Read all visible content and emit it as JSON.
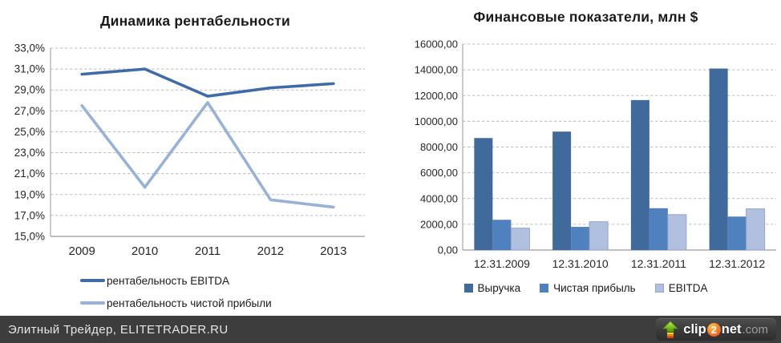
{
  "colors": {
    "grid": "#bfbfbf",
    "axis": "#9a9a9a",
    "tick_text": "#262626",
    "footer_bg": "#3d3d3d",
    "line_ebitda": "#3f6ba8",
    "line_net_margin": "#98b1d7",
    "bar_revenue": "#40699c",
    "bar_net_profit": "#4e81bd",
    "bar_ebitda": "#b1c0de",
    "bar_ebitda_border": "#95a5cc",
    "logo_orange": "#f15a24",
    "logo_green": "#6cb21c"
  },
  "chart_data": [
    {
      "type": "line",
      "title": "Динамика рентабельности",
      "categories": [
        "2009",
        "2010",
        "2011",
        "2012",
        "2013"
      ],
      "series": [
        {
          "name": "рентабельность EBITDA",
          "color": "#3f6ba8",
          "values": [
            30.5,
            31.0,
            28.4,
            29.2,
            29.6
          ]
        },
        {
          "name": "рентабельность чистой прибыли",
          "color": "#98b1d7",
          "values": [
            27.5,
            19.7,
            27.8,
            18.5,
            17.8
          ]
        }
      ],
      "ylim": [
        15,
        33
      ],
      "ytick_step": 2,
      "ytick_labels": [
        "33,0%",
        "31,0%",
        "29,0%",
        "27,0%",
        "25,0%",
        "23,0%",
        "21,0%",
        "19,0%",
        "17,0%",
        "15,0%"
      ],
      "unit": "%",
      "grid": true,
      "legend_position": "bottom-left"
    },
    {
      "type": "bar",
      "title": "Финансовые показатели, млн $",
      "categories": [
        "12.31.2009",
        "12.31.2010",
        "12.31.2011",
        "12.31.2012"
      ],
      "series": [
        {
          "name": "Выручка",
          "color": "#40699c",
          "values": [
            8700,
            9200,
            11650,
            14100
          ]
        },
        {
          "name": "Чистая прибыль",
          "color": "#4e81bd",
          "values": [
            2350,
            1800,
            3250,
            2600
          ]
        },
        {
          "name": "EBITDA",
          "color": "#b1c0de",
          "border": "#95a5cc",
          "values": [
            1700,
            2200,
            2750,
            3200
          ]
        }
      ],
      "ylim": [
        0,
        16000
      ],
      "ytick_step": 2000,
      "ytick_labels": [
        "16000,00",
        "14000,00",
        "12000,00",
        "10000,00",
        "8000,00",
        "6000,00",
        "4000,00",
        "2000,00",
        "0,00"
      ],
      "grid": true,
      "legend_position": "bottom-center"
    }
  ],
  "footer": {
    "credit": "Элитный Трейдер, ELITETRADER.RU",
    "logo": {
      "clip": "clip",
      "two": "2",
      "net": "net",
      "dotcom": ".com"
    }
  }
}
